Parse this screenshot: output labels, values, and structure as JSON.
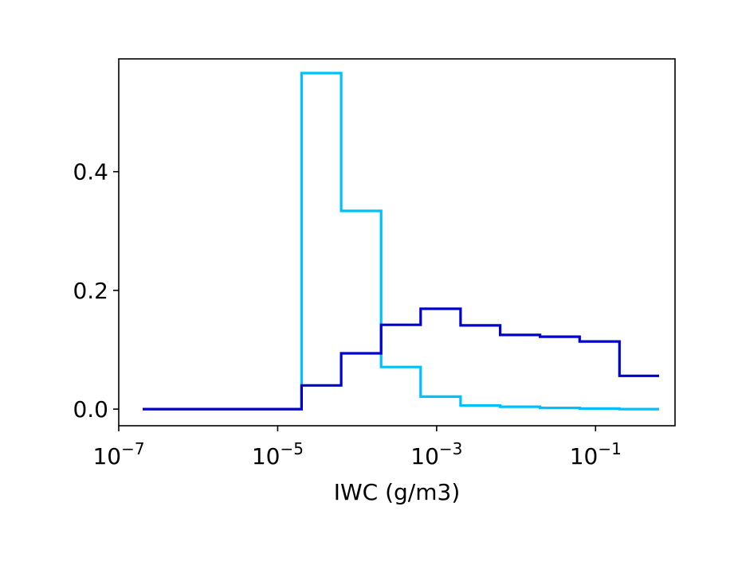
{
  "chart_data": {
    "type": "line",
    "drawstyle": "steps-post",
    "xlabel": "IWC (g/m3)",
    "ylabel": "",
    "title": "",
    "x_scale": "log",
    "xlim": [
      1e-07,
      1.0
    ],
    "ylim": [
      -0.028,
      0.59
    ],
    "grid": false,
    "legend": "none",
    "x_ticks": [
      {
        "value": 1e-07,
        "base": "10",
        "exp": "−7"
      },
      {
        "value": 1e-05,
        "base": "10",
        "exp": "−5"
      },
      {
        "value": 0.001,
        "base": "10",
        "exp": "−3"
      },
      {
        "value": 0.1,
        "base": "10",
        "exp": "−1"
      }
    ],
    "y_ticks": [
      {
        "value": 0.0,
        "label": "0.0"
      },
      {
        "value": 0.2,
        "label": "0.2"
      },
      {
        "value": 0.4,
        "label": "0.4"
      }
    ],
    "series": [
      {
        "color": "#00bfff",
        "edges": [
          2e-07,
          2e-05,
          6.3e-05,
          0.0002,
          0.00063,
          0.002,
          0.0063,
          0.02,
          0.063,
          0.2,
          0.63
        ],
        "values": [
          0.0,
          0.566,
          0.334,
          0.071,
          0.021,
          0.006,
          0.004,
          0.002,
          0.001,
          0.0
        ]
      },
      {
        "color": "#0000cd",
        "edges": [
          2e-07,
          2e-05,
          6.3e-05,
          0.0002,
          0.00063,
          0.002,
          0.0063,
          0.02,
          0.063,
          0.2,
          0.63
        ],
        "values": [
          0.0,
          0.04,
          0.094,
          0.142,
          0.169,
          0.141,
          0.125,
          0.122,
          0.114,
          0.056
        ]
      }
    ]
  }
}
